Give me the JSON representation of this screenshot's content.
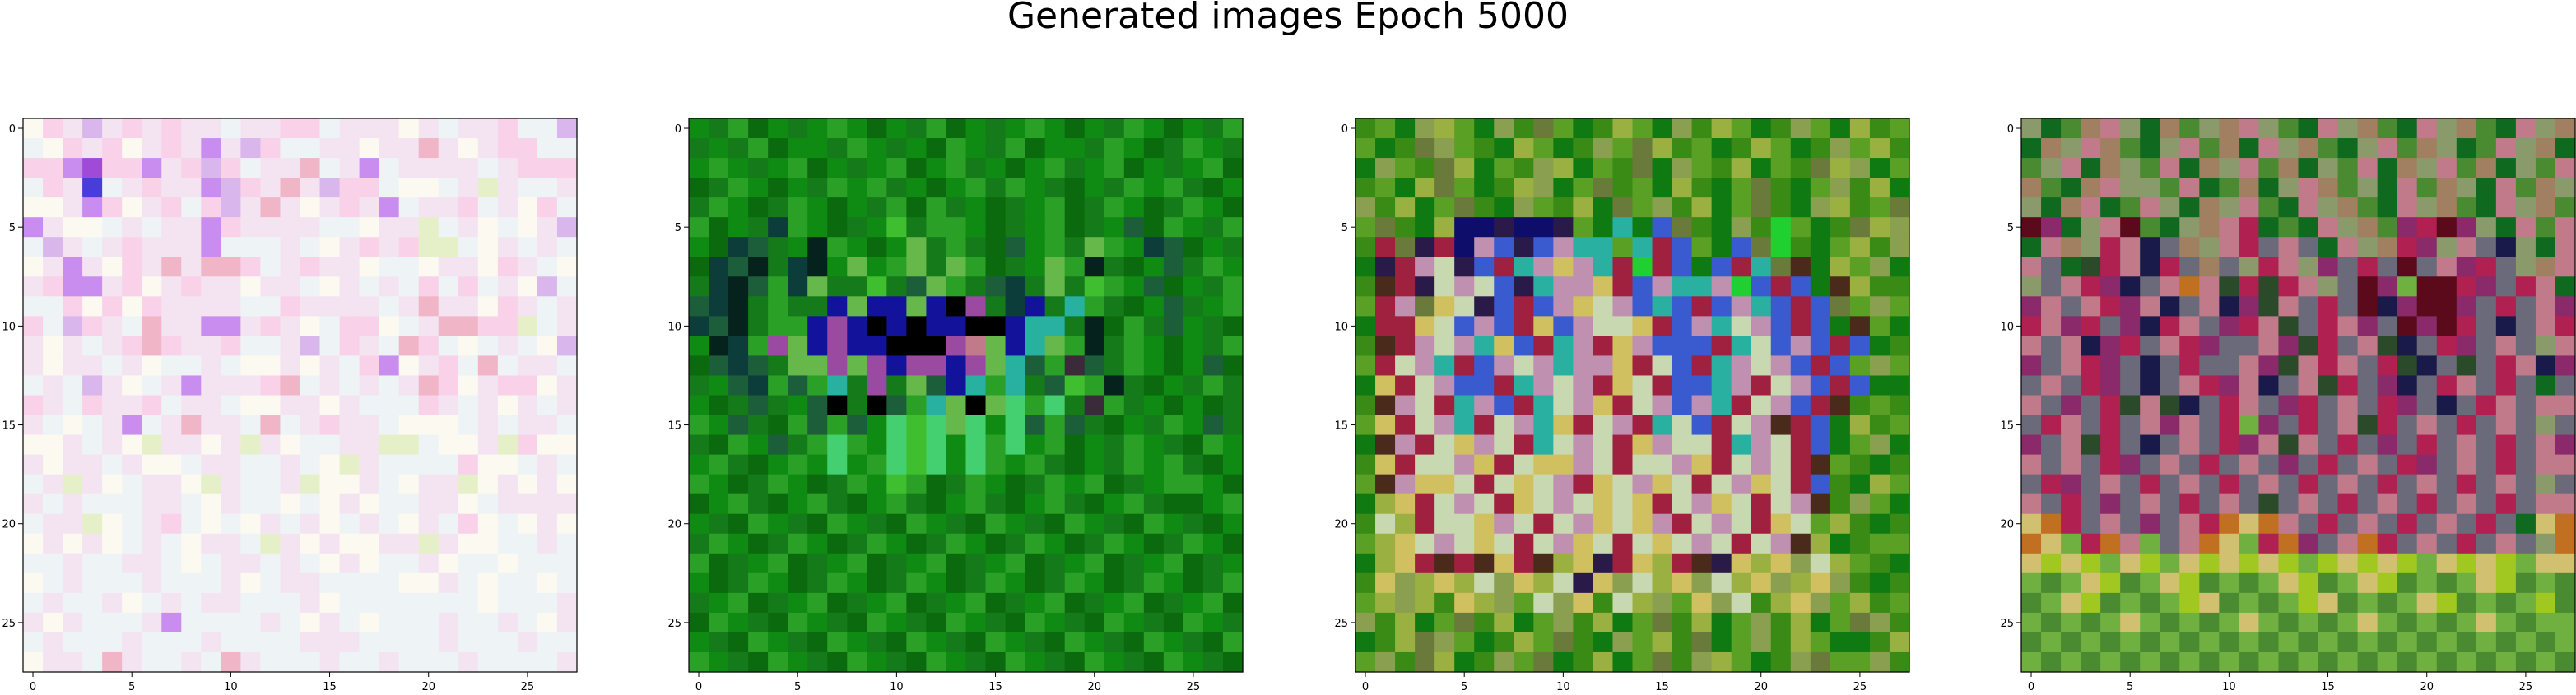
{
  "figure": {
    "title": "Generated images Epoch 5000"
  },
  "chart_data": [
    {
      "type": "heatmap",
      "description_of_cells": "28x28 RGB image; pixel colors summarized by palette index grid",
      "xlim": [
        -0.5,
        27.5
      ],
      "ylim": [
        27.5,
        -0.5
      ],
      "xticks": [
        0,
        5,
        10,
        15,
        20,
        25
      ],
      "yticks": [
        0,
        5,
        10,
        15,
        20,
        25
      ],
      "grid": false,
      "palette": [
        "#f4e4f2",
        "#f9d2ea",
        "#eef4f6",
        "#fbf9f0",
        "#d9b7ec",
        "#c98df0",
        "#a04ad8",
        "#4a3bdb",
        "#f0b6c8",
        "#e6f0c8",
        "#f5e28a",
        "#d8dc3a",
        "#c69a2c",
        "#3fbf3f",
        "#1f1f5a",
        "#e0207a"
      ],
      "grid_rows": [
        "3104010100200112000302001224",
        "2310130105041220030080301122",
        "1156115014120082052000020111",
        "2107201005410804112332090220",
        "3305130121408030105200120312",
        "5033202005100002230092032304",
        "2402010005222023010199230202",
        "3050310808812010032230031023",
        "0155013010030023020212120342",
        "2213131000022100002080031020",
        "1241028005501032113208811920",
        "0302018100122042102812320234",
        "0300203220233030215301282002",
        "2024032050001820202081301130",
        "1021001200233003022210203020",
        "0232052080028201002333202002",
        "3302039003090322009923309133",
        "0300203320022023902222133202",
        "2090320039022093302300930303",
        "0202220023022323032200320000",
        "2009320123230203202302132303",
        "3030320230029030330090332202",
        "2202200232002023032203223222",
        "3202220222032002222330232232",
        "2022032020022203222222232220",
        "0302220522220230232220220230",
        "2022202220222200022220222022",
        "3002802202802220220222022220"
      ]
    },
    {
      "type": "heatmap",
      "description_of_cells": "28x28 RGB image; pixel colors summarized by palette index grid",
      "xlim": [
        -0.5,
        27.5
      ],
      "ylim": [
        27.5,
        -0.5
      ],
      "xticks": [
        0,
        5,
        10,
        15,
        20,
        25
      ],
      "yticks": [
        0,
        5,
        10,
        15,
        20,
        25
      ],
      "grid": false,
      "palette": [
        "#0f8a12",
        "#157a1a",
        "#2aa126",
        "#0b6a0e",
        "#1d5e3a",
        "#0c3d3a",
        "#06221c",
        "#3fbf2f",
        "#66b84a",
        "#12129a",
        "#000000",
        "#9a4aa0",
        "#c07a8a",
        "#28b0a0",
        "#44d070",
        "#3a2a3a"
      ],
      "grid_rows": [
        "0123010203012301020301203012",
        "1012300120103201230012031201",
        "0201023010230210302102301023",
        "3120301202103021201301202130",
        "1203120301232103102312031203",
        "2301520310712203102310432012",
        "0354106203081213402182054301",
        "3546156080281823108261304120",
        "1564258117148214518172043012",
        "4561211989989ab1591d21304102",
        "5461229b9a9a99aa9dd1632140130",
        "0652b89b99aaabc89d8261203012",
        "3454188b8b9bb9b8d42f4120304",
        "1045242d1b1849d2d1472613012",
        "0314104a1a42d8a8e2e1f2103",
        "2041324240e7e8e0e4241301",
        "1320412e20e7e0e2e0230120",
        "0213020e02e7e0e20213012",
        "2031203120723120312023102",
        "3021302130213021302130213",
        "0132013201320132013201320130",
        "1203120312031203120312031203",
        "2310231023102310231023102310",
        "0312031203120312031203120312",
        "1023102310231023102310231023",
        "3201320132013201320132013201",
        "0132013201320132013201320132",
        "2013201320132013201320132013"
      ]
    },
    {
      "type": "heatmap",
      "description_of_cells": "28x28 RGB image; pixel colors summarized by palette index grid",
      "xlim": [
        -0.5,
        27.5
      ],
      "ylim": [
        27.5,
        -0.5
      ],
      "xticks": [
        0,
        5,
        10,
        15,
        20,
        25
      ],
      "yticks": [
        0,
        5,
        10,
        15,
        20,
        25
      ],
      "grid": false,
      "palette": [
        "#3a8a16",
        "#5aa024",
        "#0f7a12",
        "#8aa050",
        "#9ab040",
        "#6a7a3a",
        "#0e0e6a",
        "#2a1a4a",
        "#a02040",
        "#c090b0",
        "#d0c060",
        "#c8d8b0",
        "#2ab0a0",
        "#3a5ad0",
        "#4a2a1a",
        "#20d030"
      ],
      "grid_rows": [
        "0123412305120412304120312401",
        "1205310241203154012041203140",
        "2310542103421052310421054321",
        "0124512043215012402150213042",
        "3042150231042513042150234015",
        "1502466766712c2d50230f1205431",
        "0857869d7d9cc1c8d12d5f021403",
        "2789b7d8c9a9c8f8d2d8c5e2413",
        "0e87b9bd7c99a8d9cc9fd8d2e40",
        "1895ab7d8d9ab9dcd8d9cd8d513",
        "288abd9d8ad9bba8d9cb9d8d2e1",
        "0e89b9cad8c98a9ddd8cbd9d8d2",
        "18b9c8d9b9c99a8bd8c9b9d8d13",
        "2a8b9dd8c9b98ab8ddc98b9d8d2",
        "0e9b8c9d8cb9a8b9d9c8b9d8e01",
        "1a8b9c8b9ca8b98cbd8b9e8d240",
        "2e98ba9b8cb9b8a9bb8c9b8d213",
        "0a8bb9a8baa9b8bb9a8b9b8e102",
        "1e9aab8bab98ab9ab8b9ab8d024",
        "24a8b9b8ab9baba8b9ab8b9e031",
        "0b48bba9b8b9aba98b9b8ab1402",
        "14ab9bab8b9ab8bab9b8b9e4201",
        "24a8e8ea8e4a78a48e7a4a3b410",
        "0a34a4b3a4b7a3b4a3b4a34a302",
        "14340a431b3a0b431a3b04a3140",
        "30421504213042150421304215",
        "2045312041502314052130412",
        "1305420315204215034120351"
      ]
    },
    {
      "type": "heatmap",
      "description_of_cells": "28x28 RGB image; pixel colors summarized by palette index grid",
      "xlim": [
        -0.5,
        27.5
      ],
      "ylim": [
        27.5,
        -0.5
      ],
      "xticks": [
        0,
        5,
        10,
        15,
        20,
        25
      ],
      "yticks": [
        0,
        5,
        10,
        15,
        20,
        25
      ],
      "grid": false,
      "palette": [
        "#4a8a30",
        "#8a9a6a",
        "#0f6a20",
        "#a08060",
        "#c07a8a",
        "#8a2a6a",
        "#5a0a1a",
        "#1a1a4a",
        "#b02050",
        "#d0c070",
        "#70b040",
        "#2a4a2a",
        "#c07020",
        "#6a6a7a",
        "#30a030",
        "#a0c820"
      ],
      "grid_rows": [
        "1203412301341024130241302413",
        "2314302140324130214031204132",
        "0142310423140321042314032104",
        "3023411042032143012403124031",
        "1234204123140241302413024130",
        "6521460213482024130586512404",
        "2431847d3148d4d24138514d7124",
        "4d2b8478d3d18415d8d6d458d13",
        "1d4857d4c4b8b841d65a6685d842",
        "54d48547d475b4d8d675665d8d4",
        "8458d5784d584bd845d6568d7d4",
        "4d4758d485dd45b8d4b7d85d4d1",
        "5d485d7d8dd45b484d8b7dbd847",
        "d4d85d7d48547d4b8d57d84d8d2",
        "4d5d8b4b7d84d58d4d85d7d84d4",
        "d84d8d454d8a5d8d4b8d4d8d4d1",
        "5d4b8d7d4d854b4d8d5d8d4d8d4",
        "4d4d85d4d8d4d5d8d4d85d4d8d4",
        "d85d4d8d4d8d4d8d4d8d4d8d4d1",
        "4d8d5d4d8d4dbd4d8d4d8d4d8d4",
        "9c8d4d5d48c9c4d8d4d8d4d8d2",
        "c9a8c4ad4c9a8c5d4c8d4d8d4d1",
        "9f9fa9fa9f9f9faf9f9fa9f9fa9",
        "a0a9f0a9f0a0a9f0a9f0a0a9f0a0",
        "0a9f0a0af90a0af90a0a9f0a0af",
        "a0a0a9a0a0a9a0a0a9a0a0a9a0a",
        "0a0a0a0a0a0a0a0a0a0a0a0a0a0a",
        "a0a0a0a0a0a0a0a0a0a0a0a0a0a0"
      ]
    }
  ]
}
